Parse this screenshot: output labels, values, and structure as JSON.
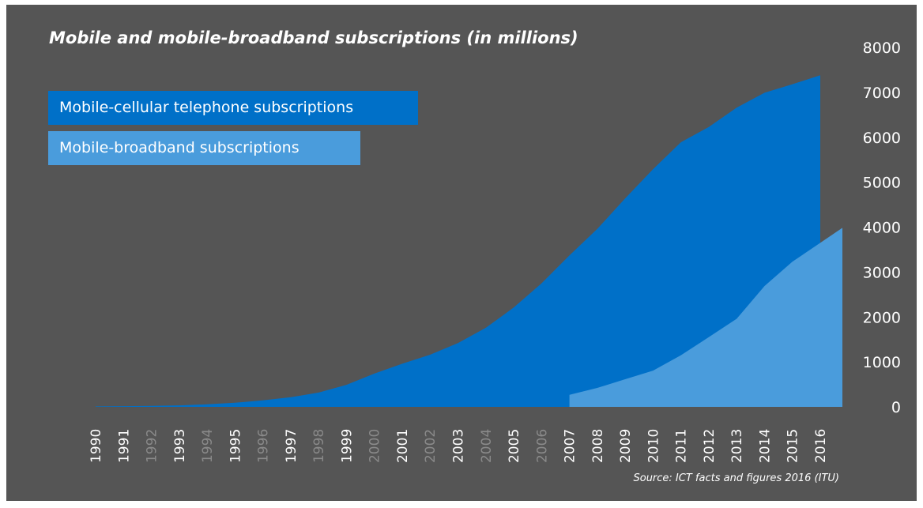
{
  "chart_data": {
    "type": "area",
    "title": "Mobile and mobile-broadband subscriptions (in millions)",
    "source": "Source: ICT facts and figures 2016 (ITU)",
    "x_labels": [
      "1990",
      "1991",
      "1992",
      "1993",
      "1994",
      "1995",
      "1996",
      "1997",
      "1998",
      "1999",
      "2000",
      "2001",
      "2002",
      "2003",
      "2004",
      "2005",
      "2006",
      "2007",
      "2008",
      "2009",
      "2010",
      "2011",
      "2012",
      "2013",
      "2014",
      "2015",
      "2016"
    ],
    "dimmed_x_labels": [
      "1992",
      "1994",
      "1996",
      "1998",
      "2000",
      "2002",
      "2004",
      "2006"
    ],
    "y_ticks": [
      "0",
      "1000",
      "2000",
      "3000",
      "4000",
      "5000",
      "6000",
      "7000",
      "8000"
    ],
    "ylim": [
      0,
      8000
    ],
    "legend_placement": "top-left",
    "series": [
      {
        "name": "Mobile-cellular telephone subscriptions",
        "color": "#0070C8",
        "x": [
          1990,
          1991,
          1992,
          1993,
          1994,
          1995,
          1996,
          1997,
          1998,
          1999,
          2000,
          2001,
          2002,
          2003,
          2004,
          2005,
          2006,
          2007,
          2008,
          2009,
          2010,
          2011,
          2012,
          2013,
          2014,
          2015,
          2016
        ],
        "values": [
          11,
          16,
          23,
          34,
          56,
          91,
          145,
          215,
          318,
          490,
          740,
          960,
          1160,
          1420,
          1760,
          2210,
          2750,
          3370,
          3960,
          4640,
          5290,
          5890,
          6230,
          6660,
          6990,
          7180,
          7380
        ]
      },
      {
        "name": "Mobile-broadband subscriptions",
        "color": "#4A9CDC",
        "x": [
          2007,
          2008,
          2009,
          2010,
          2011,
          2012,
          2013,
          2014,
          2015,
          2016
        ],
        "values": [
          268,
          422,
          615,
          807,
          1150,
          1550,
          1960,
          2690,
          3230,
          3650
        ]
      }
    ]
  },
  "colors": {
    "background": "#555555",
    "dimmed_tick": "#8A8A8A",
    "tick": "#ffffff"
  }
}
